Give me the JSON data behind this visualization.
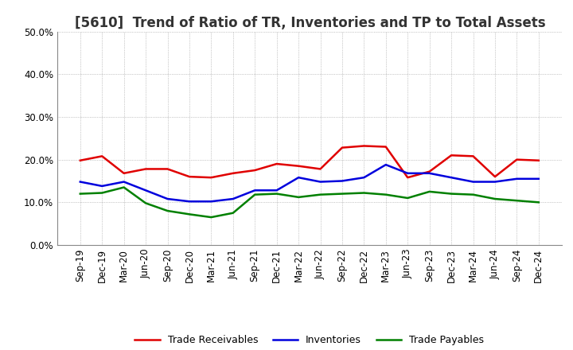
{
  "title": "[5610]  Trend of Ratio of TR, Inventories and TP to Total Assets",
  "labels": [
    "Sep-19",
    "Dec-19",
    "Mar-20",
    "Jun-20",
    "Sep-20",
    "Dec-20",
    "Mar-21",
    "Jun-21",
    "Sep-21",
    "Dec-21",
    "Mar-22",
    "Jun-22",
    "Sep-22",
    "Dec-22",
    "Mar-23",
    "Jun-23",
    "Sep-23",
    "Dec-23",
    "Mar-24",
    "Jun-24",
    "Sep-24",
    "Dec-24"
  ],
  "trade_receivables": [
    0.198,
    0.208,
    0.168,
    0.178,
    0.178,
    0.16,
    0.158,
    0.168,
    0.175,
    0.19,
    0.185,
    0.178,
    0.228,
    0.232,
    0.23,
    0.158,
    0.172,
    0.21,
    0.208,
    0.16,
    0.2,
    0.198
  ],
  "inventories": [
    0.148,
    0.138,
    0.148,
    0.128,
    0.108,
    0.102,
    0.102,
    0.108,
    0.128,
    0.128,
    0.158,
    0.148,
    0.15,
    0.158,
    0.188,
    0.168,
    0.168,
    0.158,
    0.148,
    0.148,
    0.155,
    0.155
  ],
  "trade_payables": [
    0.12,
    0.122,
    0.135,
    0.098,
    0.08,
    0.072,
    0.065,
    0.075,
    0.118,
    0.12,
    0.112,
    0.118,
    0.12,
    0.122,
    0.118,
    0.11,
    0.125,
    0.12,
    0.118,
    0.108,
    0.104,
    0.1
  ],
  "tr_color": "#e00000",
  "inv_color": "#0000dd",
  "tp_color": "#008000",
  "ylim": [
    0.0,
    0.5
  ],
  "yticks": [
    0.0,
    0.1,
    0.2,
    0.3,
    0.4,
    0.5
  ],
  "background_color": "#ffffff",
  "plot_bg_color": "#ffffff",
  "grid_color": "#999999",
  "legend_labels": [
    "Trade Receivables",
    "Inventories",
    "Trade Payables"
  ],
  "title_fontsize": 12,
  "tick_fontsize": 8.5,
  "legend_fontsize": 9
}
